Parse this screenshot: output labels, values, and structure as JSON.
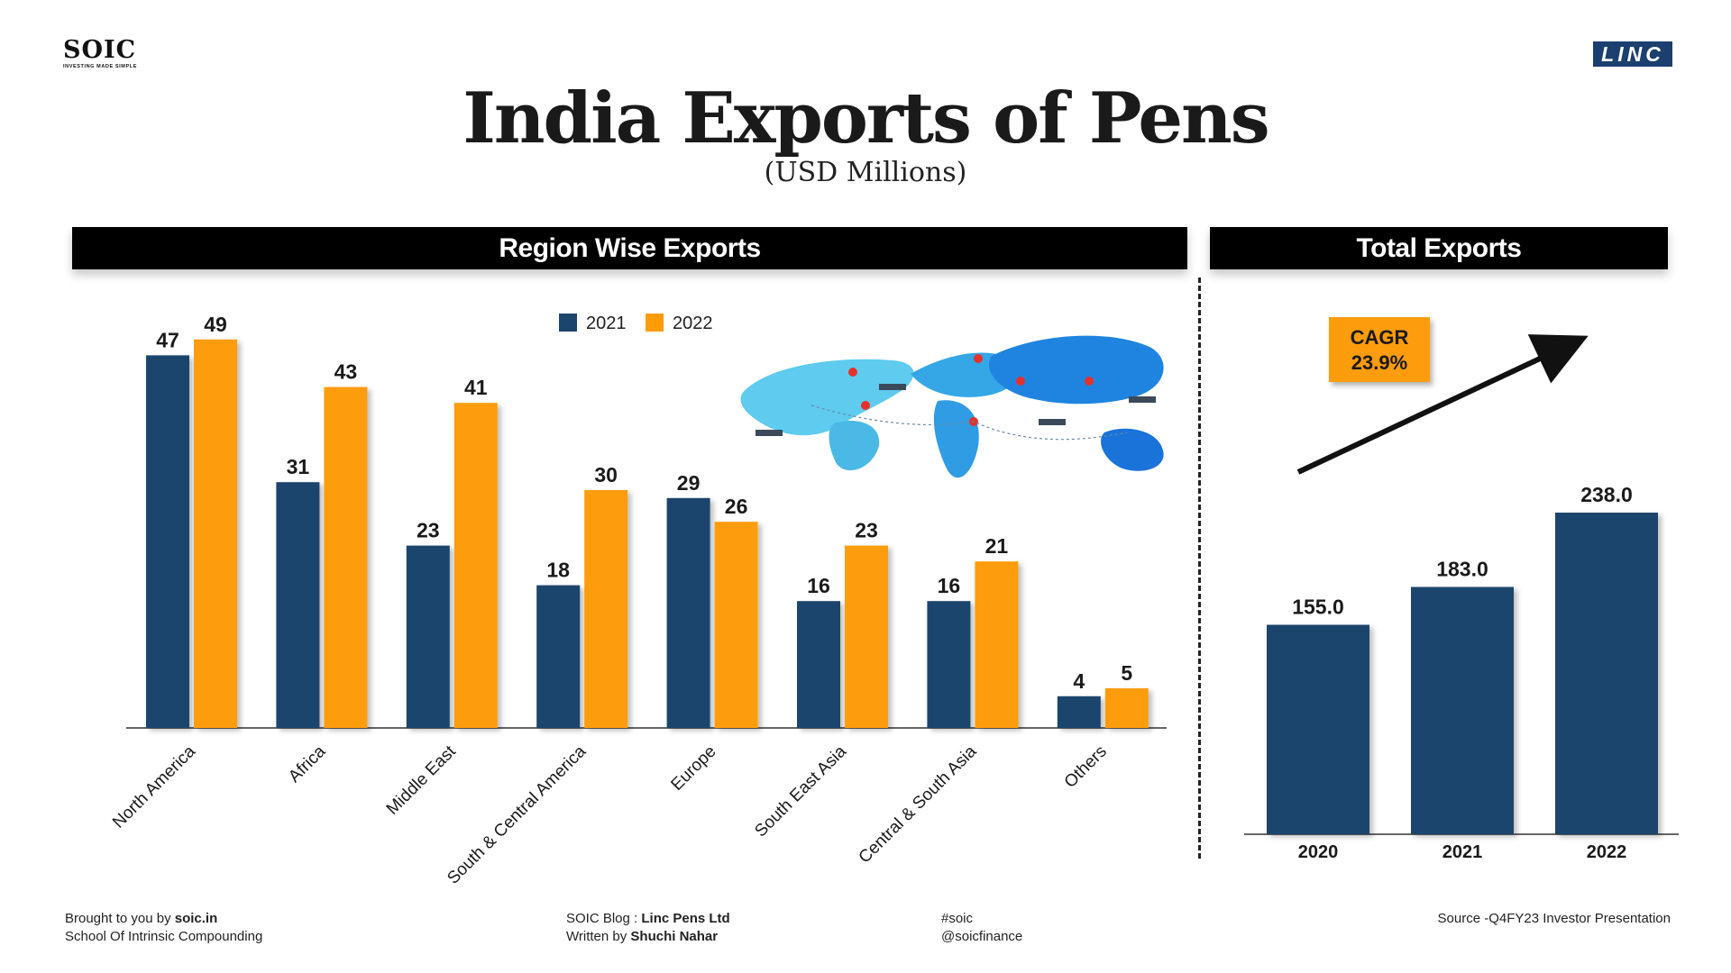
{
  "header": {
    "logo_left": "SOIC",
    "logo_left_tagline": "INVESTING MADE SIMPLE",
    "logo_right": "LINC",
    "title": "India Exports of Pens",
    "subtitle": "(USD Millions)"
  },
  "panels": {
    "left_title": "Region Wise Exports",
    "right_title": "Total Exports"
  },
  "colors": {
    "series_2021": "#1b456d",
    "series_2022": "#fd9c08",
    "arrow": "#111111",
    "cagr_box": "#fd9c08"
  },
  "cagr": {
    "label": "CAGR",
    "value": "23.9%"
  },
  "chart_data": [
    {
      "type": "bar",
      "title": "Region Wise Exports",
      "categories": [
        "North America",
        "Africa",
        "Middle East",
        "South & Central America",
        "Europe",
        "South East Asia",
        "Central & South Asia",
        "Others"
      ],
      "series": [
        {
          "name": "2021",
          "values": [
            47,
            31,
            23,
            18,
            29,
            16,
            16,
            4
          ]
        },
        {
          "name": "2022",
          "values": [
            49,
            43,
            41,
            30,
            26,
            23,
            21,
            5
          ]
        }
      ],
      "ylim": [
        0,
        50
      ],
      "legend": "top-center",
      "grid": false,
      "data_labels": true
    },
    {
      "type": "bar",
      "title": "Total Exports",
      "categories": [
        "2020",
        "2021",
        "2022"
      ],
      "values": [
        155.0,
        183.0,
        238.0
      ],
      "value_labels": [
        "155.0",
        "183.0",
        "238.0"
      ],
      "ylim": [
        0,
        250
      ],
      "grid": false,
      "data_labels": true
    }
  ],
  "footer": {
    "col1_prefix": "Brought to you by ",
    "col1_bold": "soic.in",
    "col1_line2": "School Of Intrinsic Compounding",
    "col2_prefix": "SOIC Blog : ",
    "col2_bold": "Linc Pens Ltd",
    "col2_line2_prefix": "Written by ",
    "col2_line2_bold": "Shuchi Nahar",
    "col3_line1": "#soic",
    "col3_line2": "@soicfinance",
    "col4": "Source -Q4FY23 Investor Presentation"
  }
}
